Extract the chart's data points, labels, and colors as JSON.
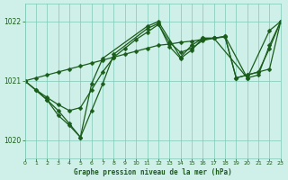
{
  "background_color": "#cff0e8",
  "grid_color": "#7fc8b8",
  "line_color": "#1a5c1a",
  "title": "Graphe pression niveau de la mer (hPa)",
  "xlim": [
    0,
    23
  ],
  "ylim": [
    1019.7,
    1022.3
  ],
  "yticks": [
    1020,
    1021,
    1022
  ],
  "xticks": [
    0,
    1,
    2,
    3,
    4,
    5,
    6,
    7,
    8,
    9,
    10,
    11,
    12,
    13,
    14,
    15,
    16,
    17,
    18,
    19,
    20,
    21,
    22,
    23
  ],
  "series": [
    {
      "x": [
        0,
        1,
        2,
        3,
        4,
        5,
        6,
        7,
        8,
        9,
        10,
        11,
        12,
        13,
        14,
        15,
        16,
        17,
        18,
        19,
        20,
        21,
        22,
        23
      ],
      "y": [
        1021.0,
        1021.05,
        1021.1,
        1021.15,
        1021.2,
        1021.25,
        1021.3,
        1021.35,
        1021.4,
        1021.45,
        1021.5,
        1021.55,
        1021.6,
        1021.62,
        1021.65,
        1021.67,
        1021.7,
        1021.72,
        1021.74,
        1021.05,
        1021.1,
        1021.15,
        1021.2,
        1022.0
      ]
    },
    {
      "x": [
        1,
        2,
        3,
        4,
        5,
        6,
        7,
        8,
        9,
        10,
        11,
        12,
        13,
        14,
        15,
        16,
        17,
        18,
        19,
        20,
        21,
        22,
        23
      ],
      "y": [
        1020.85,
        1020.72,
        1020.6,
        1020.5,
        1020.55,
        1020.85,
        1021.15,
        1021.4,
        1021.55,
        1021.7,
        1021.82,
        1021.95,
        1021.65,
        1021.48,
        1021.55,
        1021.68,
        1021.72,
        1021.75,
        1021.05,
        1021.1,
        1021.15,
        1021.55,
        1022.0
      ]
    },
    {
      "x": [
        0,
        1,
        2,
        3,
        4,
        5,
        6,
        7,
        8,
        11,
        12,
        13,
        14,
        15,
        16,
        17,
        18,
        20,
        21,
        22,
        23
      ],
      "y": [
        1021.0,
        1020.85,
        1020.68,
        1020.5,
        1020.28,
        1020.05,
        1020.5,
        1020.95,
        1021.45,
        1021.88,
        1021.97,
        1021.58,
        1021.38,
        1021.52,
        1021.72,
        1021.72,
        1021.75,
        1021.05,
        1021.1,
        1021.6,
        1022.0
      ]
    },
    {
      "x": [
        0,
        2,
        3,
        4,
        5,
        6,
        7,
        11,
        12,
        14,
        15,
        16,
        17,
        20,
        22,
        23
      ],
      "y": [
        1021.0,
        1020.68,
        1020.42,
        1020.25,
        1020.05,
        1020.95,
        1021.38,
        1021.92,
        1022.0,
        1021.4,
        1021.6,
        1021.72,
        1021.72,
        1021.05,
        1021.85,
        1022.0
      ]
    }
  ]
}
